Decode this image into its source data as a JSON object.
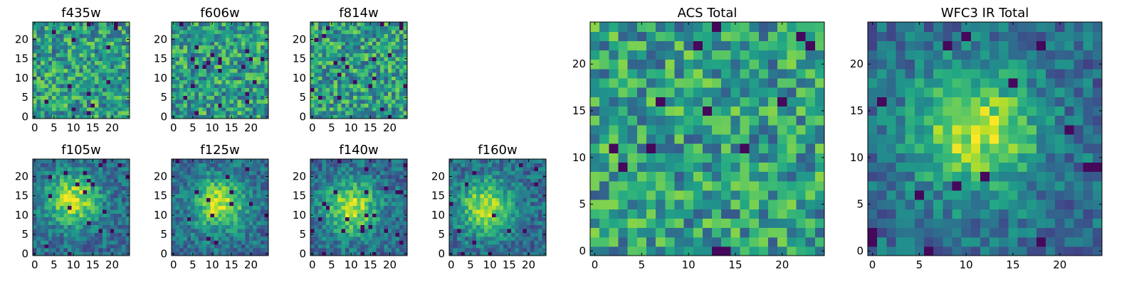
{
  "chart_data": [
    {
      "type": "heatmap",
      "title": "f435w",
      "colormap": "viridis",
      "shape": [
        25,
        25
      ],
      "xlim": [
        -0.5,
        24.5
      ],
      "ylim": [
        -0.5,
        24.5
      ],
      "xticks": [
        0,
        5,
        10,
        15,
        20
      ],
      "yticks": [
        0,
        5,
        10,
        15,
        20
      ],
      "pattern": "noise",
      "seed": 11
    },
    {
      "type": "heatmap",
      "title": "f606w",
      "colormap": "viridis",
      "shape": [
        25,
        25
      ],
      "xlim": [
        -0.5,
        24.5
      ],
      "ylim": [
        -0.5,
        24.5
      ],
      "xticks": [
        0,
        5,
        10,
        15,
        20
      ],
      "yticks": [
        0,
        5,
        10,
        15,
        20
      ],
      "pattern": "noise",
      "seed": 23
    },
    {
      "type": "heatmap",
      "title": "f814w",
      "colormap": "viridis",
      "shape": [
        25,
        25
      ],
      "xlim": [
        -0.5,
        24.5
      ],
      "ylim": [
        -0.5,
        24.5
      ],
      "xticks": [
        0,
        5,
        10,
        15,
        20
      ],
      "yticks": [
        0,
        5,
        10,
        15,
        20
      ],
      "pattern": "noise",
      "seed": 37
    },
    {
      "type": "heatmap",
      "title": "f105w",
      "colormap": "viridis",
      "shape": [
        25,
        25
      ],
      "xlim": [
        -0.5,
        24.5
      ],
      "ylim": [
        -0.5,
        24.5
      ],
      "xticks": [
        0,
        5,
        10,
        15,
        20
      ],
      "yticks": [
        0,
        5,
        10,
        15,
        20
      ],
      "pattern": "blob",
      "center": [
        10,
        14
      ],
      "seed": 41
    },
    {
      "type": "heatmap",
      "title": "f125w",
      "colormap": "viridis",
      "shape": [
        25,
        25
      ],
      "xlim": [
        -0.5,
        24.5
      ],
      "ylim": [
        -0.5,
        24.5
      ],
      "xticks": [
        0,
        5,
        10,
        15,
        20
      ],
      "yticks": [
        0,
        5,
        10,
        15,
        20
      ],
      "pattern": "blob",
      "center": [
        12,
        13
      ],
      "seed": 53
    },
    {
      "type": "heatmap",
      "title": "f140w",
      "colormap": "viridis",
      "shape": [
        25,
        25
      ],
      "xlim": [
        -0.5,
        24.5
      ],
      "ylim": [
        -0.5,
        24.5
      ],
      "xticks": [
        0,
        5,
        10,
        15,
        20
      ],
      "yticks": [
        0,
        5,
        10,
        15,
        20
      ],
      "pattern": "blob",
      "center": [
        10,
        12
      ],
      "seed": 67
    },
    {
      "type": "heatmap",
      "title": "f160w",
      "colormap": "viridis",
      "shape": [
        25,
        25
      ],
      "xlim": [
        -0.5,
        24.5
      ],
      "ylim": [
        -0.5,
        24.5
      ],
      "xticks": [
        0,
        5,
        10,
        15,
        20
      ],
      "yticks": [
        0,
        5,
        10,
        15,
        20
      ],
      "pattern": "blob",
      "center": [
        9,
        12
      ],
      "seed": 79
    },
    {
      "type": "heatmap",
      "title": "ACS Total",
      "colormap": "viridis",
      "shape": [
        25,
        25
      ],
      "xlim": [
        -0.5,
        24.5
      ],
      "ylim": [
        -0.5,
        24.5
      ],
      "xticks": [
        0,
        5,
        10,
        15,
        20
      ],
      "yticks": [
        0,
        5,
        10,
        15,
        20
      ],
      "pattern": "noise",
      "seed": 97
    },
    {
      "type": "heatmap",
      "title": "WFC3 IR Total",
      "colormap": "viridis",
      "shape": [
        25,
        25
      ],
      "xlim": [
        -0.5,
        24.5
      ],
      "ylim": [
        -0.5,
        24.5
      ],
      "xticks": [
        0,
        5,
        10,
        15,
        20
      ],
      "yticks": [
        0,
        5,
        10,
        15,
        20
      ],
      "pattern": "blob",
      "center": [
        11,
        13
      ],
      "seed": 101
    }
  ]
}
